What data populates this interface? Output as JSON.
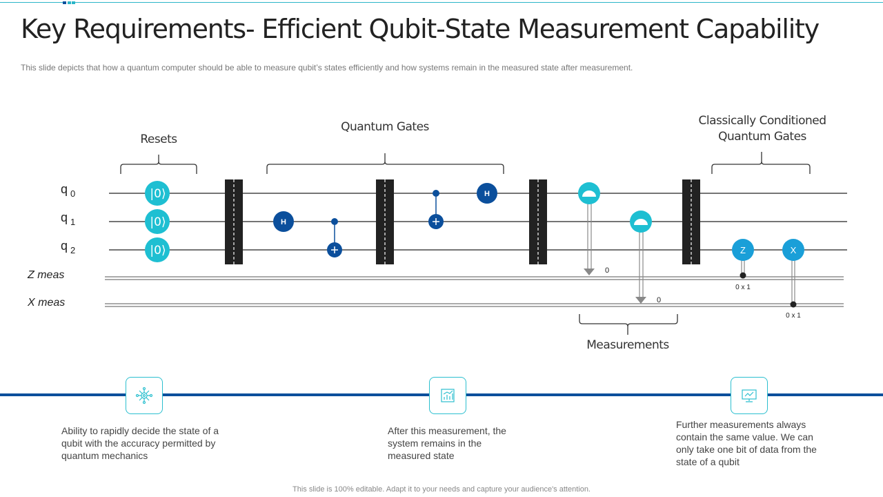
{
  "title": "Key Requirements- Efficient Qubit-State Measurement Capability",
  "subtitle": "This slide depicts that how a quantum computer should be able to measure qubit’s states efficiently and how systems remain in the measured state after measurement.",
  "circuit": {
    "qubits": [
      "q",
      "q",
      "q"
    ],
    "qubit_indices": [
      "0",
      "1",
      "2"
    ],
    "classical": [
      "Z meas",
      "X meas"
    ],
    "group_labels": {
      "resets": "Resets",
      "gates": "Quantum Gates",
      "conditioned": "Classically Conditioned Quantum Gates",
      "measurements": "Measurements"
    },
    "reset_label": "|0⟩",
    "gates": {
      "h": "H",
      "z": "Z",
      "x": "X"
    },
    "meas_values": [
      "0",
      "0"
    ],
    "condition_labels": [
      "0 x 1",
      "0 x 1"
    ],
    "colors": {
      "reset": "#1ebfd2",
      "gate": "#0b4f9c",
      "cond": "#1a9fd8",
      "barrier": "#222222"
    }
  },
  "points": [
    {
      "icon": "network-icon",
      "text": "Ability to rapidly decide the state of a qubit with the accuracy permitted by quantum mechanics"
    },
    {
      "icon": "chart-board-icon",
      "text": "After this measurement, the system remains in the measured state"
    },
    {
      "icon": "monitor-icon",
      "text": "Further measurements always contain the same value.  We can only take one bit of data from the state of a qubit"
    }
  ],
  "footer": "This slide is 100% editable. Adapt it to your needs and capture your audience's attention."
}
